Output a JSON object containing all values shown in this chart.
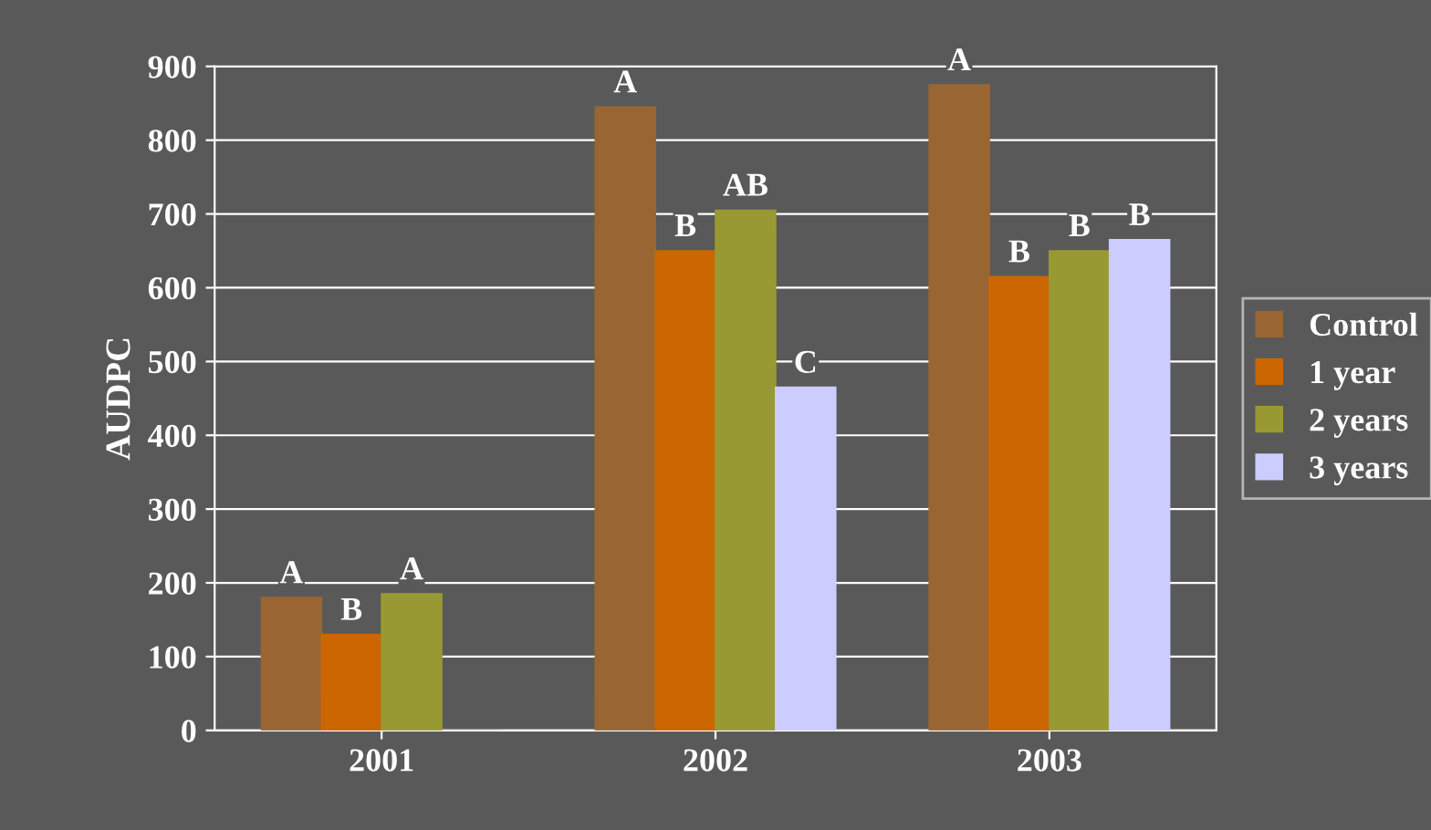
{
  "chart_data": {
    "type": "bar",
    "ylabel": "AUDPC",
    "categories": [
      "2001",
      "2002",
      "2003"
    ],
    "series": [
      {
        "name": "Control",
        "color": "#996633",
        "values": [
          180,
          845,
          875
        ],
        "value_labels": [
          "A",
          "A",
          "A"
        ]
      },
      {
        "name": "1 year",
        "color": "#cc6600",
        "values": [
          130,
          650,
          615
        ],
        "value_labels": [
          "B",
          "B",
          "B"
        ]
      },
      {
        "name": "2 years",
        "color": "#999933",
        "values": [
          185,
          705,
          650
        ],
        "value_labels": [
          "A",
          "AB",
          "B"
        ]
      },
      {
        "name": "3 years",
        "color": "#ccccff",
        "values": [
          0,
          465,
          665
        ],
        "value_labels": [
          null,
          "C",
          "B"
        ]
      }
    ],
    "ylim": [
      0,
      900
    ],
    "yticks": [
      0,
      100,
      200,
      300,
      400,
      500,
      600,
      700,
      800,
      900
    ],
    "grid": "y",
    "legend": "right"
  }
}
